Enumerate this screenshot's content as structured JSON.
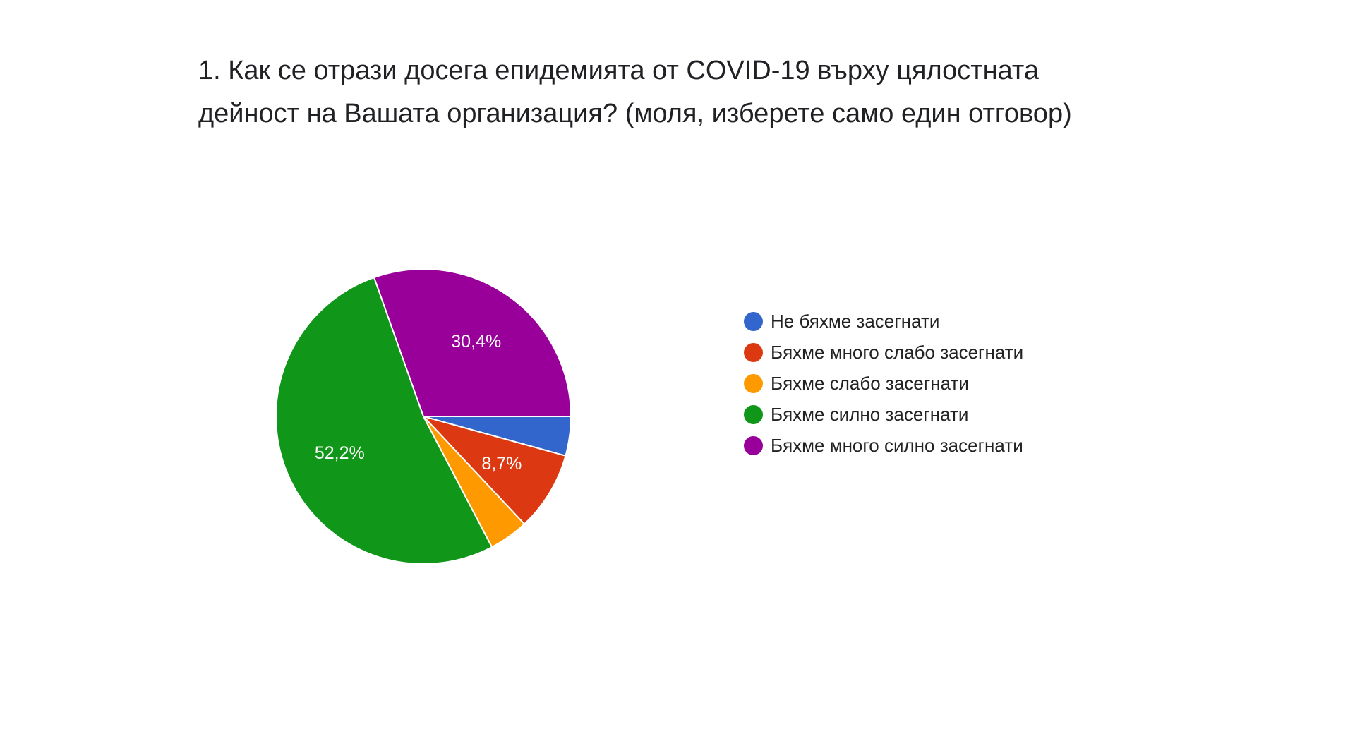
{
  "title_lines": [
    "1. Как се отрази досега епидемията от COVID-19 върху цялостната",
    "дейност на Вашата организация? (моля, изберете само един отговор)"
  ],
  "chart_data": {
    "type": "pie",
    "categories": [
      "Не бяхме засегнати",
      "Бяхме много слабо засегнати",
      "Бяхме слабо засегнати",
      "Бяхме силно засегнати",
      "Бяхме много силно засегнати"
    ],
    "values": [
      4.3,
      8.7,
      4.3,
      52.2,
      30.4
    ],
    "slice_labels": [
      "",
      "8,7%",
      "",
      "52,2%",
      "30,4%"
    ],
    "colors": [
      "#3366cc",
      "#dc3912",
      "#ff9900",
      "#109618",
      "#990099"
    ],
    "start_angle_deg": 90,
    "direction": "clockwise",
    "legend_position": "right"
  }
}
